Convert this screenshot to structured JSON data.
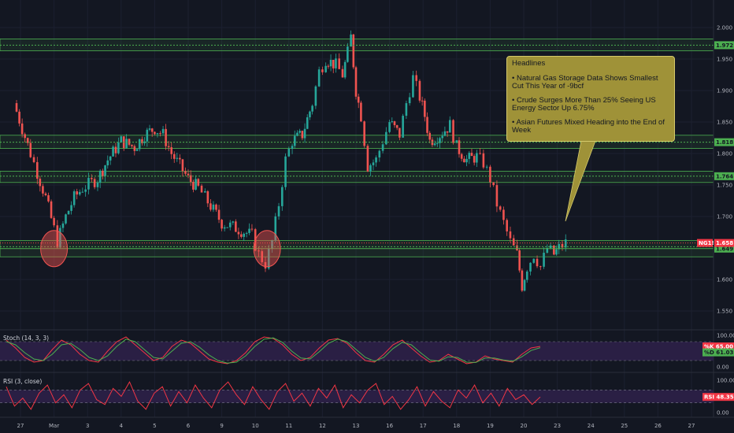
{
  "chart_data": [
    {
      "type": "candlestick",
      "symbol_badge": "NG1!",
      "ylim": [
        1.53,
        2.02
      ],
      "y_ticks": [
        "2.000",
        "1.950",
        "1.900",
        "1.850",
        "1.800",
        "1.750",
        "1.700",
        "1.600",
        "1.550"
      ],
      "x_ticks": [
        "27",
        "Mar",
        "3",
        "4",
        "5",
        "6",
        "9",
        "10",
        "11",
        "12",
        "13",
        "16",
        "17",
        "18",
        "19",
        "20",
        "23",
        "24",
        "25",
        "26",
        "27"
      ],
      "levels": [
        {
          "label": "1.972",
          "value": 1.972,
          "color": "#4caf50",
          "style": "dotted"
        },
        {
          "label": "1.818",
          "value": 1.818,
          "color": "#4caf50",
          "style": "dotted"
        },
        {
          "label": "1.764",
          "value": 1.764,
          "color": "#4caf50",
          "style": "dotted"
        },
        {
          "label": "1.652",
          "value": 1.652,
          "color": "#4caf50",
          "style": "dotted"
        },
        {
          "label": "1.649",
          "value": 1.649,
          "color": "#4caf50",
          "style": "solid"
        }
      ],
      "zones": [
        {
          "low": 1.963,
          "high": 1.982
        },
        {
          "low": 1.808,
          "high": 1.829
        },
        {
          "low": 1.754,
          "high": 1.772
        },
        {
          "low": 1.636,
          "high": 1.662
        }
      ],
      "last_price": {
        "label": "1.658",
        "value": 1.658,
        "color": "#f23645"
      },
      "circles": [
        {
          "x": 1.0,
          "y": 1.649
        },
        {
          "x": 7.35,
          "y": 1.649
        }
      ],
      "path": [
        {
          "x": -0.2,
          "close": 1.88
        },
        {
          "x": 0.3,
          "close": 1.8
        },
        {
          "x": 0.5,
          "close": 1.77
        },
        {
          "x": 0.75,
          "close": 1.73
        },
        {
          "x": 1.0,
          "close": 1.68
        },
        {
          "x": 1.1,
          "close": 1.66
        },
        {
          "x": 1.35,
          "close": 1.7
        },
        {
          "x": 1.6,
          "close": 1.73
        },
        {
          "x": 1.85,
          "close": 1.745
        },
        {
          "x": 2.3,
          "close": 1.76
        },
        {
          "x": 2.6,
          "close": 1.79
        },
        {
          "x": 3.0,
          "close": 1.82
        },
        {
          "x": 3.4,
          "close": 1.81
        },
        {
          "x": 3.7,
          "close": 1.83
        },
        {
          "x": 4.0,
          "close": 1.84
        },
        {
          "x": 4.25,
          "close": 1.83
        },
        {
          "x": 4.5,
          "close": 1.8
        },
        {
          "x": 5.0,
          "close": 1.76
        },
        {
          "x": 5.3,
          "close": 1.745
        },
        {
          "x": 5.5,
          "close": 1.73
        },
        {
          "x": 6.0,
          "close": 1.69
        },
        {
          "x": 6.5,
          "close": 1.68
        },
        {
          "x": 6.9,
          "close": 1.67
        },
        {
          "x": 7.1,
          "close": 1.64
        },
        {
          "x": 7.3,
          "close": 1.625
        },
        {
          "x": 7.5,
          "close": 1.66
        },
        {
          "x": 7.7,
          "close": 1.72
        },
        {
          "x": 7.9,
          "close": 1.79
        },
        {
          "x": 8.1,
          "close": 1.82
        },
        {
          "x": 8.4,
          "close": 1.83
        },
        {
          "x": 8.7,
          "close": 1.88
        },
        {
          "x": 8.9,
          "close": 1.93
        },
        {
          "x": 9.1,
          "close": 1.95
        },
        {
          "x": 9.4,
          "close": 1.94
        },
        {
          "x": 9.6,
          "close": 1.925
        },
        {
          "x": 9.75,
          "close": 1.96
        },
        {
          "x": 9.85,
          "close": 1.985
        },
        {
          "x": 10.0,
          "close": 1.9
        },
        {
          "x": 10.15,
          "close": 1.86
        },
        {
          "x": 10.35,
          "close": 1.78
        },
        {
          "x": 10.6,
          "close": 1.79
        },
        {
          "x": 10.8,
          "close": 1.82
        },
        {
          "x": 11.0,
          "close": 1.85
        },
        {
          "x": 11.3,
          "close": 1.83
        },
        {
          "x": 11.5,
          "close": 1.88
        },
        {
          "x": 11.7,
          "close": 1.92
        },
        {
          "x": 11.9,
          "close": 1.89
        },
        {
          "x": 12.05,
          "close": 1.86
        },
        {
          "x": 12.2,
          "close": 1.82
        },
        {
          "x": 12.5,
          "close": 1.83
        },
        {
          "x": 12.8,
          "close": 1.845
        },
        {
          "x": 13.0,
          "close": 1.81
        },
        {
          "x": 13.3,
          "close": 1.79
        },
        {
          "x": 13.6,
          "close": 1.795
        },
        {
          "x": 13.8,
          "close": 1.785
        },
        {
          "x": 14.0,
          "close": 1.76
        },
        {
          "x": 14.2,
          "close": 1.72
        },
        {
          "x": 14.4,
          "close": 1.69
        },
        {
          "x": 14.6,
          "close": 1.66
        },
        {
          "x": 14.8,
          "close": 1.64
        },
        {
          "x": 14.95,
          "close": 1.59
        },
        {
          "x": 15.1,
          "close": 1.62
        },
        {
          "x": 15.3,
          "close": 1.64
        },
        {
          "x": 15.5,
          "close": 1.62
        },
        {
          "x": 15.7,
          "close": 1.65
        },
        {
          "x": 15.9,
          "close": 1.64
        },
        {
          "x": 16.05,
          "close": 1.65
        },
        {
          "x": 16.25,
          "close": 1.658
        }
      ]
    },
    {
      "type": "line",
      "indicator": "Stochastic",
      "title": "Stoch (14, 3, 3)",
      "ylim": [
        0,
        100
      ],
      "y_ticks": [
        "100.00",
        "0.00"
      ],
      "bands": [
        20,
        80
      ],
      "values": {
        "K": "65.00",
        "D": "61.03"
      },
      "series": [
        {
          "name": "%K",
          "color": "#f23645",
          "values": [
            85,
            60,
            30,
            15,
            20,
            55,
            85,
            70,
            40,
            20,
            15,
            50,
            80,
            95,
            70,
            45,
            20,
            30,
            65,
            85,
            75,
            50,
            25,
            15,
            10,
            20,
            45,
            80,
            95,
            90,
            70,
            40,
            20,
            30,
            60,
            85,
            90,
            75,
            45,
            20,
            15,
            40,
            70,
            85,
            60,
            35,
            15,
            20,
            40,
            25,
            10,
            15,
            35,
            25,
            20,
            15,
            40,
            60,
            65
          ]
        },
        {
          "name": "%D",
          "color": "#4caf50",
          "values": [
            80,
            70,
            45,
            25,
            20,
            40,
            70,
            75,
            55,
            30,
            20,
            35,
            65,
            88,
            80,
            55,
            30,
            25,
            50,
            75,
            80,
            62,
            38,
            20,
            12,
            15,
            35,
            65,
            88,
            92,
            78,
            50,
            28,
            25,
            48,
            75,
            88,
            80,
            55,
            30,
            18,
            30,
            58,
            78,
            70,
            45,
            22,
            18,
            32,
            30,
            15,
            14,
            28,
            28,
            22,
            18,
            32,
            52,
            61
          ]
        }
      ]
    },
    {
      "type": "line",
      "indicator": "RSI",
      "title": "RSI (3, close)",
      "ylim": [
        0,
        100
      ],
      "y_ticks": [
        "100.00",
        "0.00"
      ],
      "bands": [
        30,
        70
      ],
      "value": "48.35",
      "series": [
        {
          "name": "RSI",
          "color": "#f23645",
          "values": [
            80,
            20,
            45,
            10,
            60,
            85,
            30,
            55,
            15,
            70,
            90,
            40,
            25,
            75,
            50,
            95,
            35,
            10,
            60,
            80,
            20,
            65,
            30,
            85,
            45,
            15,
            70,
            95,
            55,
            25,
            80,
            40,
            10,
            65,
            90,
            35,
            60,
            20,
            75,
            45,
            85,
            15,
            55,
            30,
            70,
            90,
            25,
            50,
            10,
            40,
            80,
            20,
            65,
            35,
            15,
            70,
            45,
            85,
            30,
            60,
            20,
            75,
            40,
            55,
            25,
            48
          ]
        }
      ]
    }
  ],
  "headlines": {
    "title": "Headlines",
    "items": [
      "• Natural Gas Storage Data Shows Smallest Cut This Year of -9bcf",
      "• Crude Surges More Than 25% Seeing US Energy Sector Up 6.75%",
      "• Asian Futures Mixed Heading into the End of Week"
    ],
    "background": "#9f9238"
  },
  "colors": {
    "background": "#131722",
    "up": "#26a69a",
    "down": "#ef5350",
    "level_line": "#4caf50",
    "indicator_fill": "#2a1f44"
  }
}
